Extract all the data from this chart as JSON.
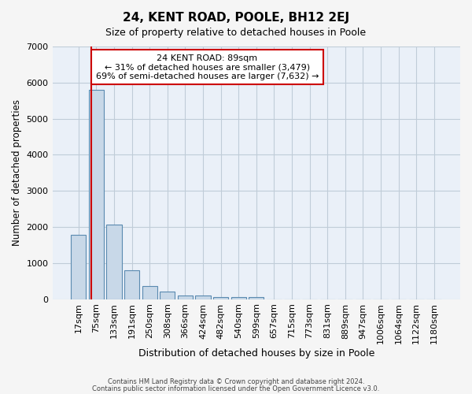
{
  "title": "24, KENT ROAD, POOLE, BH12 2EJ",
  "subtitle": "Size of property relative to detached houses in Poole",
  "xlabel": "Distribution of detached houses by size in Poole",
  "ylabel": "Number of detached properties",
  "bar_labels": [
    "17sqm",
    "75sqm",
    "133sqm",
    "191sqm",
    "250sqm",
    "308sqm",
    "366sqm",
    "424sqm",
    "482sqm",
    "540sqm",
    "599sqm",
    "657sqm",
    "715sqm",
    "773sqm",
    "831sqm",
    "889sqm",
    "947sqm",
    "1006sqm",
    "1064sqm",
    "1122sqm",
    "1180sqm"
  ],
  "bar_values": [
    1780,
    5800,
    2070,
    800,
    360,
    220,
    110,
    95,
    60,
    50,
    65,
    0,
    0,
    0,
    0,
    0,
    0,
    0,
    0,
    0,
    0
  ],
  "bar_color": "#c8d8e8",
  "bar_edge_color": "#5a8ab0",
  "ylim": [
    0,
    7000
  ],
  "yticks": [
    0,
    1000,
    2000,
    3000,
    4000,
    5000,
    6000,
    7000
  ],
  "annotation_title": "24 KENT ROAD: 89sqm",
  "annotation_line1": "← 31% of detached houses are smaller (3,479)",
  "annotation_line2": "69% of semi-detached houses are larger (7,632) →",
  "annotation_box_color": "#ffffff",
  "annotation_box_edge": "#cc0000",
  "red_line_color": "#cc0000",
  "grid_color": "#c0ccd8",
  "background_color": "#eaf0f8",
  "fig_background": "#f5f5f5",
  "footer1": "Contains HM Land Registry data © Crown copyright and database right 2024.",
  "footer2": "Contains public sector information licensed under the Open Government Licence v3.0."
}
